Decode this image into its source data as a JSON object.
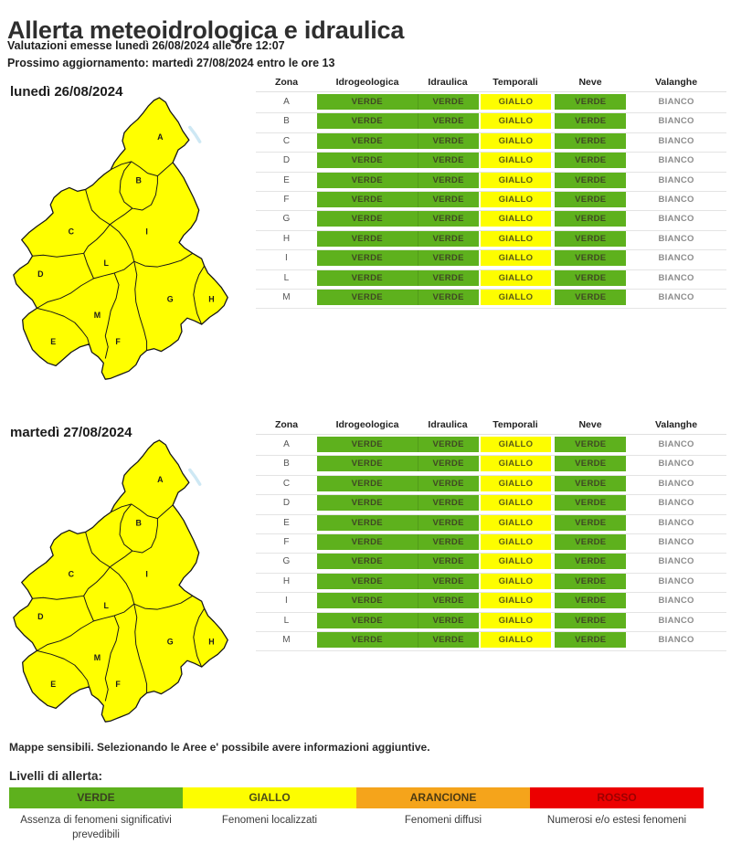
{
  "page": {
    "title": "Allerta meteoidrologica e idraulica",
    "issued_line": "Valutazioni emesse lunedì 26/08/2024 alle ore 12:07",
    "next_update_line": "Prossimo aggiornamento: martedì 27/08/2024 entro le ore 13",
    "maps_note": "Mappe sensibili. Selezionando le Aree e' possibile avere informazioni aggiuntive."
  },
  "columns": [
    "Zona",
    "Idrogeologica",
    "Idraulica",
    "Temporali",
    "Neve",
    "Valanghe"
  ],
  "alert_colors": {
    "VERDE": "#5eb11d",
    "GIALLO": "#fdfd00",
    "BIANCO": "#ffffff"
  },
  "sections": [
    {
      "date_label": "lunedì 26/08/2024",
      "rows": [
        {
          "zona": "A",
          "idrogeologica": "VERDE",
          "idraulica": "VERDE",
          "temporali": "GIALLO",
          "neve": "VERDE",
          "valanghe": "BIANCO"
        },
        {
          "zona": "B",
          "idrogeologica": "VERDE",
          "idraulica": "VERDE",
          "temporali": "GIALLO",
          "neve": "VERDE",
          "valanghe": "BIANCO"
        },
        {
          "zona": "C",
          "idrogeologica": "VERDE",
          "idraulica": "VERDE",
          "temporali": "GIALLO",
          "neve": "VERDE",
          "valanghe": "BIANCO"
        },
        {
          "zona": "D",
          "idrogeologica": "VERDE",
          "idraulica": "VERDE",
          "temporali": "GIALLO",
          "neve": "VERDE",
          "valanghe": "BIANCO"
        },
        {
          "zona": "E",
          "idrogeologica": "VERDE",
          "idraulica": "VERDE",
          "temporali": "GIALLO",
          "neve": "VERDE",
          "valanghe": "BIANCO"
        },
        {
          "zona": "F",
          "idrogeologica": "VERDE",
          "idraulica": "VERDE",
          "temporali": "GIALLO",
          "neve": "VERDE",
          "valanghe": "BIANCO"
        },
        {
          "zona": "G",
          "idrogeologica": "VERDE",
          "idraulica": "VERDE",
          "temporali": "GIALLO",
          "neve": "VERDE",
          "valanghe": "BIANCO"
        },
        {
          "zona": "H",
          "idrogeologica": "VERDE",
          "idraulica": "VERDE",
          "temporali": "GIALLO",
          "neve": "VERDE",
          "valanghe": "BIANCO"
        },
        {
          "zona": "I",
          "idrogeologica": "VERDE",
          "idraulica": "VERDE",
          "temporali": "GIALLO",
          "neve": "VERDE",
          "valanghe": "BIANCO"
        },
        {
          "zona": "L",
          "idrogeologica": "VERDE",
          "idraulica": "VERDE",
          "temporali": "GIALLO",
          "neve": "VERDE",
          "valanghe": "BIANCO"
        },
        {
          "zona": "M",
          "idrogeologica": "VERDE",
          "idraulica": "VERDE",
          "temporali": "GIALLO",
          "neve": "VERDE",
          "valanghe": "BIANCO"
        }
      ]
    },
    {
      "date_label": "martedì 27/08/2024",
      "rows": [
        {
          "zona": "A",
          "idrogeologica": "VERDE",
          "idraulica": "VERDE",
          "temporali": "GIALLO",
          "neve": "VERDE",
          "valanghe": "BIANCO"
        },
        {
          "zona": "B",
          "idrogeologica": "VERDE",
          "idraulica": "VERDE",
          "temporali": "GIALLO",
          "neve": "VERDE",
          "valanghe": "BIANCO"
        },
        {
          "zona": "C",
          "idrogeologica": "VERDE",
          "idraulica": "VERDE",
          "temporali": "GIALLO",
          "neve": "VERDE",
          "valanghe": "BIANCO"
        },
        {
          "zona": "D",
          "idrogeologica": "VERDE",
          "idraulica": "VERDE",
          "temporali": "GIALLO",
          "neve": "VERDE",
          "valanghe": "BIANCO"
        },
        {
          "zona": "E",
          "idrogeologica": "VERDE",
          "idraulica": "VERDE",
          "temporali": "GIALLO",
          "neve": "VERDE",
          "valanghe": "BIANCO"
        },
        {
          "zona": "F",
          "idrogeologica": "VERDE",
          "idraulica": "VERDE",
          "temporali": "GIALLO",
          "neve": "VERDE",
          "valanghe": "BIANCO"
        },
        {
          "zona": "G",
          "idrogeologica": "VERDE",
          "idraulica": "VERDE",
          "temporali": "GIALLO",
          "neve": "VERDE",
          "valanghe": "BIANCO"
        },
        {
          "zona": "H",
          "idrogeologica": "VERDE",
          "idraulica": "VERDE",
          "temporali": "GIALLO",
          "neve": "VERDE",
          "valanghe": "BIANCO"
        },
        {
          "zona": "I",
          "idrogeologica": "VERDE",
          "idraulica": "VERDE",
          "temporali": "GIALLO",
          "neve": "VERDE",
          "valanghe": "BIANCO"
        },
        {
          "zona": "L",
          "idrogeologica": "VERDE",
          "idraulica": "VERDE",
          "temporali": "GIALLO",
          "neve": "VERDE",
          "valanghe": "BIANCO"
        },
        {
          "zona": "M",
          "idrogeologica": "VERDE",
          "idraulica": "VERDE",
          "temporali": "GIALLO",
          "neve": "VERDE",
          "valanghe": "BIANCO"
        }
      ]
    }
  ],
  "map": {
    "fill_color": "#ffff00",
    "border_color": "#161616",
    "lake_color": "#c5e4f2",
    "zone_labels": [
      "A",
      "B",
      "C",
      "D",
      "E",
      "F",
      "G",
      "H",
      "I",
      "L",
      "M"
    ]
  },
  "legend": {
    "title": "Livelli di allerta:",
    "levels": [
      {
        "label": "VERDE",
        "color": "#5eb11d",
        "text_color": "#39411f",
        "description": "Assenza di fenomeni significativi prevedibili"
      },
      {
        "label": "GIALLO",
        "color": "#fdfd00",
        "text_color": "#4c4c18",
        "description": "Fenomeni localizzati"
      },
      {
        "label": "ARANCIONE",
        "color": "#f5a41b",
        "text_color": "#4d3a12",
        "description": "Fenomeni diffusi"
      },
      {
        "label": "ROSSO",
        "color": "#ec0000",
        "text_color": "#9c0000",
        "description": "Numerosi e/o estesi fenomeni"
      }
    ]
  }
}
